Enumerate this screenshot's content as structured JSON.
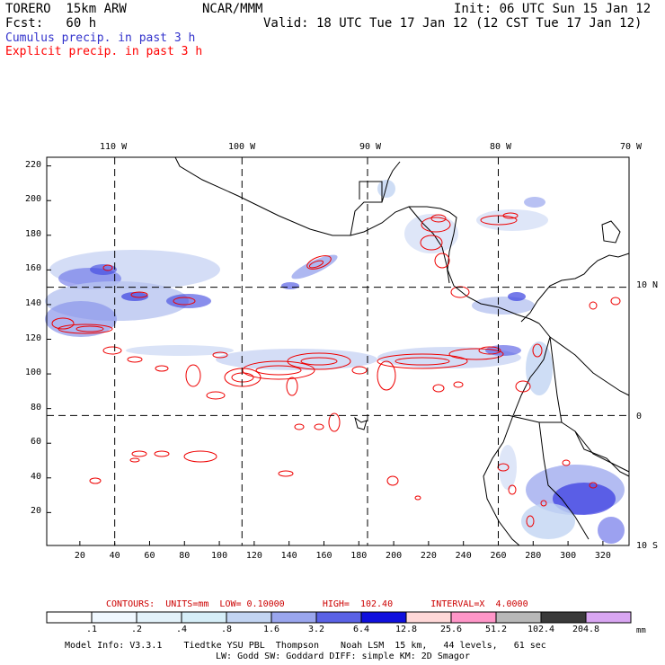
{
  "header": {
    "model": "TORERO  15km ARW",
    "org": "NCAR/MMM",
    "init": "Init: 06 UTC Sun 15 Jan 12",
    "fcst": "Fcst:   60 h",
    "valid": "Valid: 18 UTC Tue 17 Jan 12 (12 CST Tue 17 Jan 12)",
    "legend_cumulus": "Cumulus precip. in past 3 h",
    "legend_explicit": "Explicit precip. in past 3 h",
    "legend_cumulus_color": "#3333cc",
    "legend_explicit_color": "#ff0000"
  },
  "map": {
    "top_labels": [
      "110 W",
      "100 W",
      "90 W",
      "80 W",
      "70 W"
    ],
    "right_labels": [
      "10 N",
      "0",
      "10 S"
    ],
    "x_ticks": [
      "20",
      "40",
      "60",
      "80",
      "100",
      "120",
      "140",
      "160",
      "180",
      "200",
      "220",
      "240",
      "260",
      "280",
      "300",
      "320"
    ],
    "y_ticks": [
      "20",
      "40",
      "60",
      "80",
      "100",
      "120",
      "140",
      "160",
      "180",
      "200",
      "220"
    ],
    "grid_x": [
      40,
      113,
      185,
      260
    ],
    "grid_y": [
      76,
      150
    ],
    "xlim": [
      1,
      335
    ],
    "ylim": [
      1,
      225
    ]
  },
  "contour_info": {
    "text": "CONTOURS:  UNITS=mm  LOW= 0.10000       HIGH=  102.40       INTERVAL=X  4.0000",
    "color": "#cc0000"
  },
  "colorbar": {
    "labels": [
      ".1",
      ".2",
      ".4",
      ".8",
      "1.6",
      "3.2",
      "6.4",
      "12.8",
      "25.6",
      "51.2",
      "102.4",
      "204.8"
    ],
    "colors": [
      "#ffffff",
      "#f0f8ff",
      "#e3f2fa",
      "#d6eef8",
      "#c2d4f2",
      "#9aa6ee",
      "#5a62e6",
      "#1010dd",
      "#ffd8d8",
      "#ff96c8",
      "#b8b8b8",
      "#3a3a3a",
      "#d9a6f2"
    ],
    "units": "mm"
  },
  "footer": {
    "line1": "Model Info: V3.3.1    Tiedtke YSU PBL  Thompson    Noah LSM  15 km,   44 levels,   61 sec",
    "line2": "LW: Godd SW: Goddard DIFF: simple KM: 2D Smagor"
  }
}
